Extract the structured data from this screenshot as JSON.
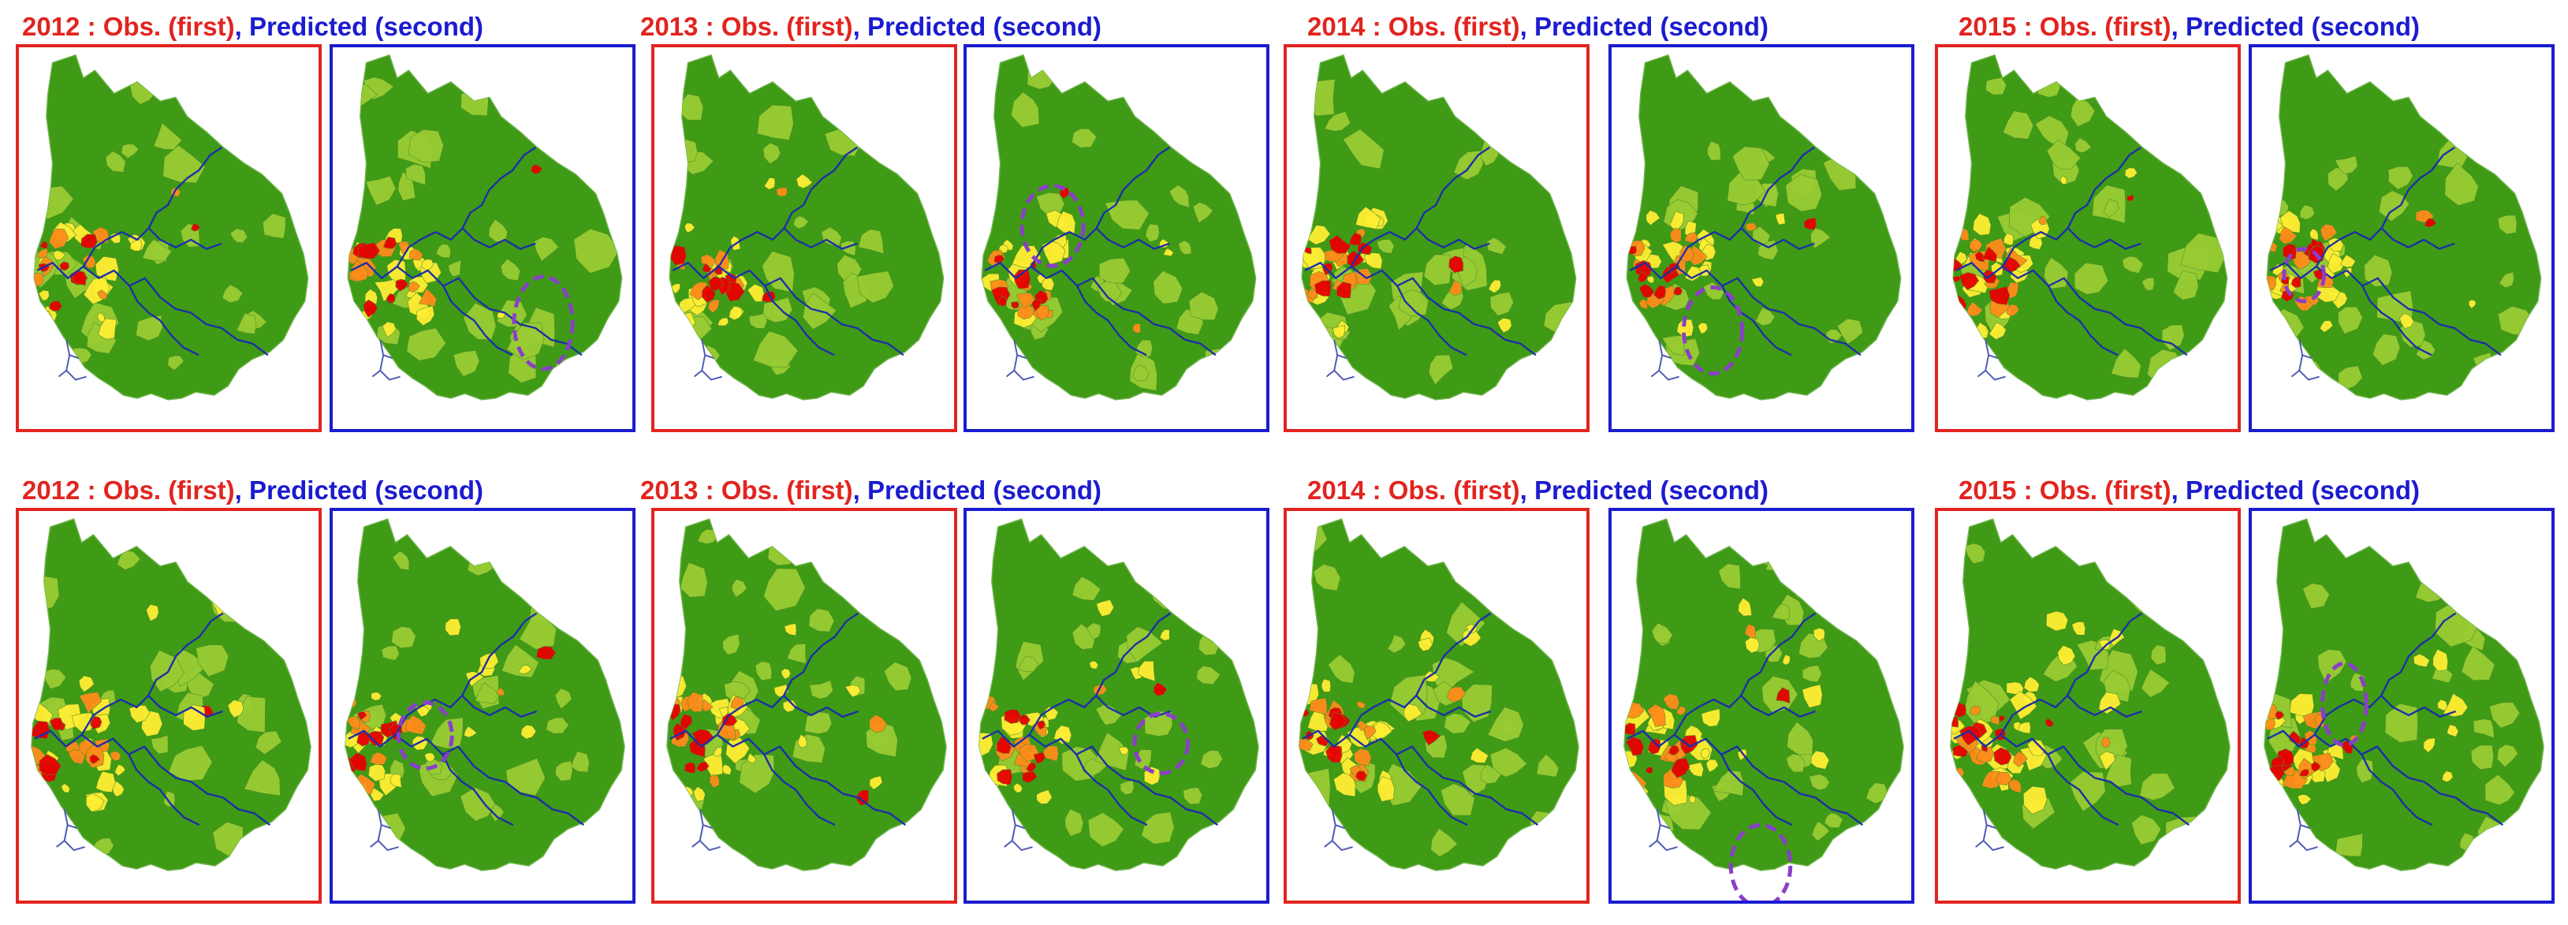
{
  "colors": {
    "observed_frame": "#e2241f",
    "predicted_frame": "#1b1bd0",
    "land_dark_green": "#3f9a15",
    "land_light_green": "#99cc33",
    "yellow": "#ffee33",
    "orange": "#ff8c1a",
    "red": "#e60000",
    "river": "#1c2fa8",
    "highlight_ellipse": "#8a3fc8"
  },
  "rows": [
    {
      "panels": [
        {
          "year": "2012",
          "sep": " : ",
          "obs": "Obs. (first)",
          "comma": ", ",
          "pred": "Predicted (second)"
        },
        {
          "year": "2013",
          "sep": " : ",
          "obs": "Obs. (first)",
          "comma": ", ",
          "pred": "Predicted (second)"
        },
        {
          "year": "2014",
          "sep": " : ",
          "obs": "Obs. (first)",
          "comma": ", ",
          "pred": "Predicted (second)"
        },
        {
          "year": "2015",
          "sep": " : ",
          "obs": "Obs. (first)",
          "comma": ", ",
          "pred": "Predicted (second)"
        }
      ]
    },
    {
      "panels": [
        {
          "year": "2012",
          "sep": " : ",
          "obs": "Obs. (first)",
          "comma": ", ",
          "pred": "Predicted (second)"
        },
        {
          "year": "2013",
          "sep": " : ",
          "obs": "Obs. (first)",
          "comma": ", ",
          "pred": "Predicted (second)"
        },
        {
          "year": "2014",
          "sep": " : ",
          "obs": "Obs. (first)",
          "comma": ", ",
          "pred": "Predicted (second)"
        },
        {
          "year": "2015",
          "sep": " : ",
          "obs": "Obs. (first)",
          "comma": ", ",
          "pred": "Predicted (second)"
        }
      ]
    }
  ]
}
